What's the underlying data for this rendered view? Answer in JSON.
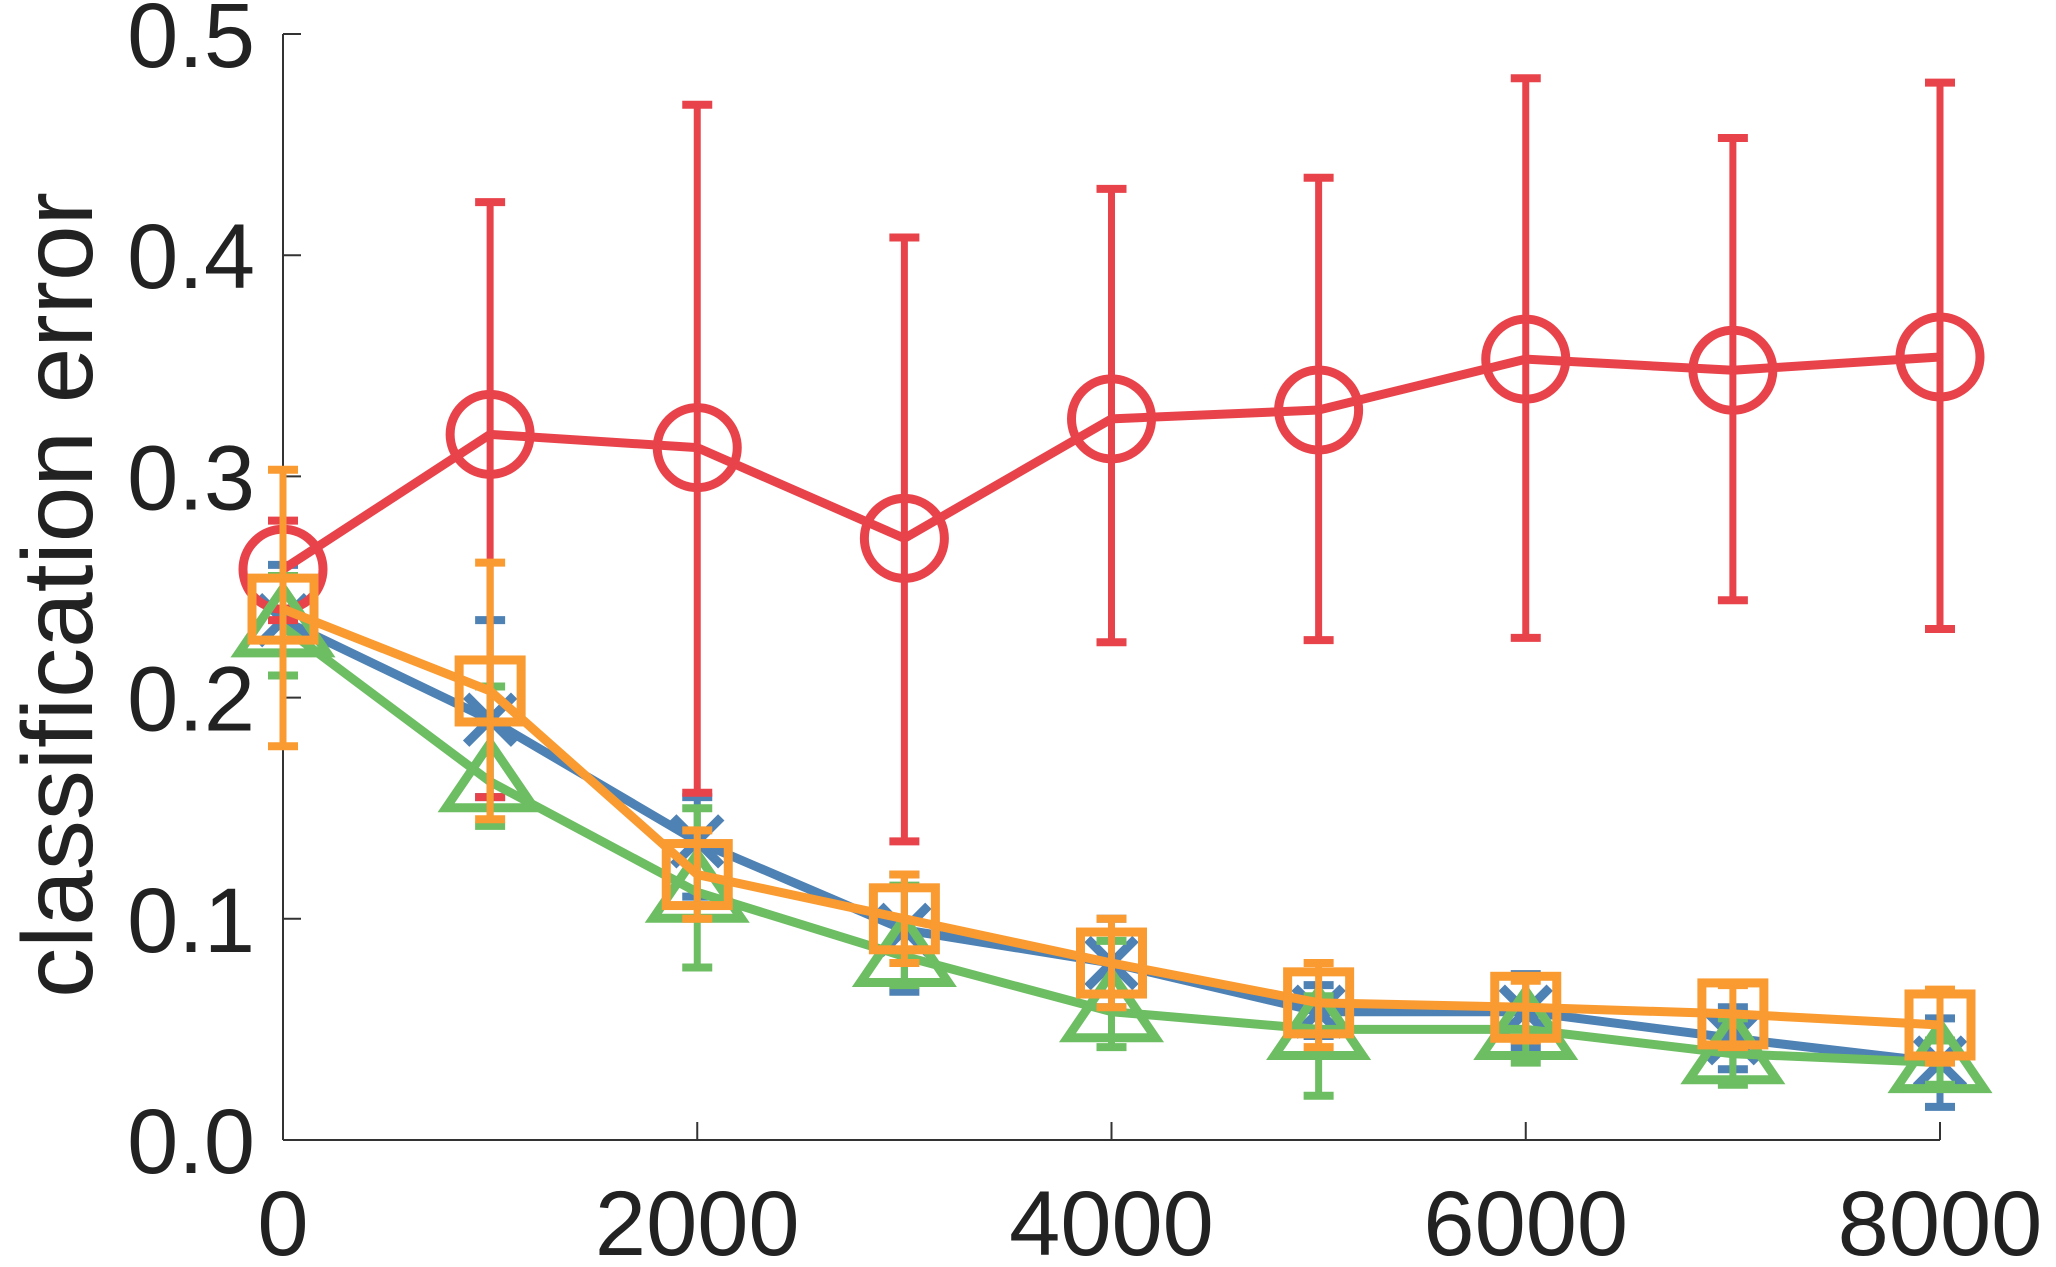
{
  "chart_data": {
    "type": "line",
    "title": "",
    "xlabel": "",
    "ylabel": "classification error",
    "xlim": [
      0,
      8000
    ],
    "ylim": [
      0,
      0.5
    ],
    "xticks": [
      0,
      2000,
      4000,
      6000,
      8000
    ],
    "xtick_labels": [
      "0",
      "2000",
      "4000",
      "6000",
      "8000"
    ],
    "yticks": [
      0,
      0.1,
      0.2,
      0.3,
      0.4,
      0.5
    ],
    "ytick_labels": [
      "0.0",
      "0.1",
      "0.2",
      "0.3",
      "0.4",
      "0.5"
    ],
    "grid": false,
    "x": [
      0,
      1000,
      2000,
      3000,
      4000,
      5000,
      6000,
      7000,
      8000
    ],
    "series": [
      {
        "color": "#4e81b4",
        "marker": "x",
        "values": [
          0.235,
          0.19,
          0.135,
          0.095,
          0.08,
          0.058,
          0.058,
          0.046,
          0.035
        ],
        "lower": [
          0.21,
          0.155,
          0.11,
          0.067,
          0.06,
          0.047,
          0.042,
          0.032,
          0.015
        ],
        "upper": [
          0.26,
          0.235,
          0.155,
          0.12,
          0.1,
          0.07,
          0.075,
          0.06,
          0.055
        ]
      },
      {
        "color": "#e8434a",
        "marker": "circle",
        "values": [
          0.258,
          0.319,
          0.313,
          0.272,
          0.326,
          0.33,
          0.353,
          0.348,
          0.354
        ],
        "lower": [
          0.235,
          0.155,
          0.157,
          0.135,
          0.225,
          0.226,
          0.227,
          0.244,
          0.231
        ],
        "upper": [
          0.28,
          0.424,
          0.468,
          0.408,
          0.43,
          0.435,
          0.48,
          0.453,
          0.478
        ]
      },
      {
        "color": "#6dbd63",
        "marker": "triangle",
        "values": [
          0.232,
          0.162,
          0.112,
          0.083,
          0.058,
          0.05,
          0.05,
          0.039,
          0.035
        ],
        "lower": [
          0.21,
          0.142,
          0.078,
          0.07,
          0.042,
          0.02,
          0.035,
          0.025,
          0.025
        ],
        "upper": [
          0.255,
          0.205,
          0.15,
          0.115,
          0.09,
          0.065,
          0.06,
          0.055,
          0.045
        ]
      },
      {
        "color": "#f99b30",
        "marker": "square",
        "values": [
          0.24,
          0.203,
          0.12,
          0.1,
          0.08,
          0.062,
          0.06,
          0.057,
          0.052
        ],
        "lower": [
          0.178,
          0.145,
          0.1,
          0.08,
          0.06,
          0.042,
          0.045,
          0.042,
          0.035
        ],
        "upper": [
          0.303,
          0.261,
          0.14,
          0.12,
          0.1,
          0.08,
          0.072,
          0.07,
          0.068
        ]
      }
    ]
  }
}
